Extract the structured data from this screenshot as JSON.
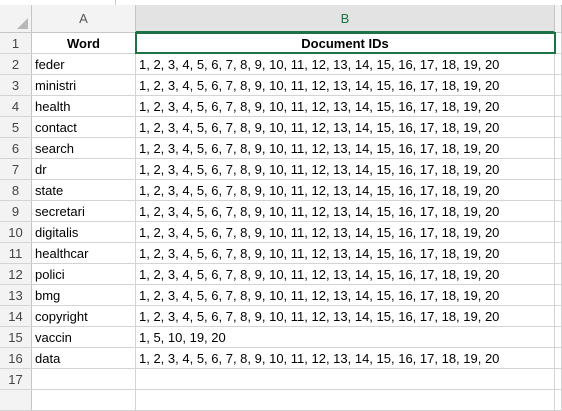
{
  "columns": [
    "A",
    "B"
  ],
  "header": {
    "word": "Word",
    "ids": "Document IDs"
  },
  "rows": [
    {
      "n": "2",
      "word": "feder",
      "ids": "1, 2, 3, 4, 5, 6, 7, 8, 9, 10, 11, 12, 13, 14, 15, 16, 17, 18, 19, 20"
    },
    {
      "n": "3",
      "word": "ministri",
      "ids": "1, 2, 3, 4, 5, 6, 7, 8, 9, 10, 11, 12, 13, 14, 15, 16, 17, 18, 19, 20"
    },
    {
      "n": "4",
      "word": "health",
      "ids": "1, 2, 3, 4, 5, 6, 7, 8, 9, 10, 11, 12, 13, 14, 15, 16, 17, 18, 19, 20"
    },
    {
      "n": "5",
      "word": "contact",
      "ids": "1, 2, 3, 4, 5, 6, 7, 8, 9, 10, 11, 12, 13, 14, 15, 16, 17, 18, 19, 20"
    },
    {
      "n": "6",
      "word": "search",
      "ids": "1, 2, 3, 4, 5, 6, 7, 8, 9, 10, 11, 12, 13, 14, 15, 16, 17, 18, 19, 20"
    },
    {
      "n": "7",
      "word": "dr",
      "ids": "1, 2, 3, 4, 5, 6, 7, 8, 9, 10, 11, 12, 13, 14, 15, 16, 17, 18, 19, 20"
    },
    {
      "n": "8",
      "word": "state",
      "ids": "1, 2, 3, 4, 5, 6, 7, 8, 9, 10, 11, 12, 13, 14, 15, 16, 17, 18, 19, 20"
    },
    {
      "n": "9",
      "word": "secretari",
      "ids": "1, 2, 3, 4, 5, 6, 7, 8, 9, 10, 11, 12, 13, 14, 15, 16, 17, 18, 19, 20"
    },
    {
      "n": "10",
      "word": "digitalis",
      "ids": "1, 2, 3, 4, 5, 6, 7, 8, 9, 10, 11, 12, 13, 14, 15, 16, 17, 18, 19, 20"
    },
    {
      "n": "11",
      "word": "healthcar",
      "ids": "1, 2, 3, 4, 5, 6, 7, 8, 9, 10, 11, 12, 13, 14, 15, 16, 17, 18, 19, 20"
    },
    {
      "n": "12",
      "word": "polici",
      "ids": "1, 2, 3, 4, 5, 6, 7, 8, 9, 10, 11, 12, 13, 14, 15, 16, 17, 18, 19, 20"
    },
    {
      "n": "13",
      "word": "bmg",
      "ids": "1, 2, 3, 4, 5, 6, 7, 8, 9, 10, 11, 12, 13, 14, 15, 16, 17, 18, 19, 20"
    },
    {
      "n": "14",
      "word": "copyright",
      "ids": "1, 2, 3, 4, 5, 6, 7, 8, 9, 10, 11, 12, 13, 14, 15, 16, 17, 18, 19, 20"
    },
    {
      "n": "15",
      "word": "vaccin",
      "ids": "1, 5, 10, 19, 20"
    },
    {
      "n": "16",
      "word": "data",
      "ids": "1, 2, 3, 4, 5, 6, 7, 8, 9, 10, 11, 12, 13, 14, 15, 16, 17, 18, 19, 20"
    },
    {
      "n": "17",
      "word": "",
      "ids": ""
    },
    {
      "n": "",
      "word": "",
      "ids": ""
    }
  ],
  "header_row_number": "1",
  "colors": {
    "accent": "#1e7145",
    "header_bg": "#f3f3f3",
    "selected_header_bg": "#e3e3e3",
    "gridline": "#d4d4d4"
  },
  "icons": {
    "corner": "select-all-triangle-icon"
  }
}
